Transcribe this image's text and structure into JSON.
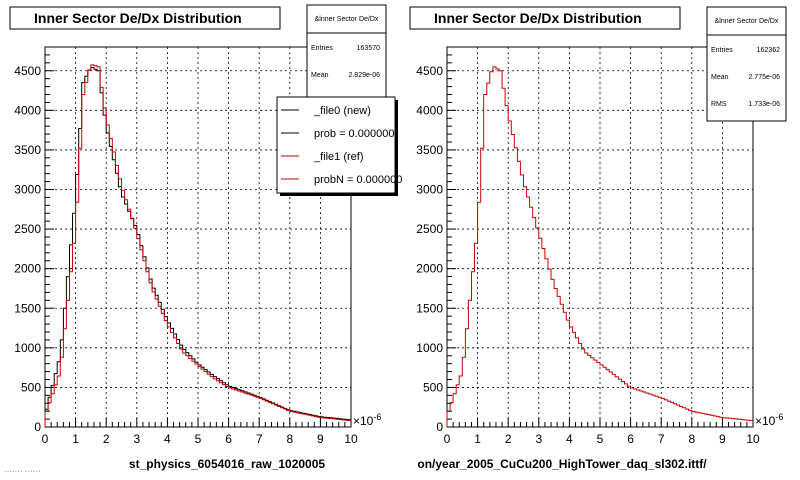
{
  "chart_data": [
    {
      "type": "line",
      "title": "Inner Sector De/Dx Distribution",
      "xlabel": "st_physics_6054016_raw_1020005",
      "x_exponent": "×10",
      "x_exponent_power": "-6",
      "xlim": [
        0,
        10
      ],
      "ylim": [
        0,
        4800
      ],
      "x_ticks": [
        "0",
        "1",
        "2",
        "3",
        "4",
        "5",
        "6",
        "7",
        "8",
        "9",
        "10"
      ],
      "y_ticks": [
        "0",
        "500",
        "1000",
        "1500",
        "2000",
        "2500",
        "3000",
        "3500",
        "4000",
        "4500"
      ],
      "grid": true,
      "stats": {
        "title": "&lnner Sector De/Dx",
        "rows": [
          {
            "label": "Entries",
            "value": "163570"
          },
          {
            "label": "Mean",
            "value": "2.829e-06"
          }
        ]
      },
      "legend": {
        "placement": "top-right",
        "entries": [
          {
            "label": "_file0 (new)",
            "color": "#000000"
          },
          {
            "label": "prob = 0.000000",
            "color": "#000000"
          },
          {
            "label": "_file1 (ref)",
            "color": "#cc0000"
          },
          {
            "label": "probN = 0.000000",
            "color": "#cc0000"
          }
        ]
      },
      "series": [
        {
          "color": "#000000",
          "x": [
            0.0,
            0.5,
            1.0,
            1.25,
            1.5,
            1.75,
            2.0,
            2.5,
            3.0,
            3.5,
            4.0,
            4.5,
            5.0,
            5.5,
            6.0,
            7.0,
            8.0,
            9.0,
            10.0
          ],
          "values": [
            150,
            900,
            2900,
            4350,
            4550,
            4500,
            3800,
            2950,
            2500,
            1800,
            1350,
            1000,
            800,
            650,
            520,
            380,
            210,
            130,
            90
          ]
        },
        {
          "color": "#cc0000",
          "x": [
            0.0,
            0.5,
            1.0,
            1.25,
            1.5,
            1.75,
            2.0,
            2.5,
            3.0,
            3.5,
            4.0,
            4.5,
            5.0,
            5.5,
            6.0,
            7.0,
            8.0,
            9.0,
            10.0
          ],
          "values": [
            140,
            700,
            2500,
            4200,
            4580,
            4550,
            3900,
            3050,
            2450,
            1750,
            1300,
            950,
            780,
            620,
            500,
            370,
            200,
            120,
            80
          ]
        }
      ]
    },
    {
      "type": "line",
      "title": "Inner Sector De/Dx Distribution",
      "xlabel": "on/year_2005_CuCu200_HighTower_daq_sl302.ittf/",
      "x_exponent": "×10",
      "x_exponent_power": "-6",
      "xlim": [
        0,
        10
      ],
      "ylim": [
        0,
        4800
      ],
      "x_ticks": [
        "0",
        "1",
        "2",
        "3",
        "4",
        "5",
        "6",
        "7",
        "8",
        "9",
        "10"
      ],
      "y_ticks": [
        "0",
        "500",
        "1000",
        "1500",
        "2000",
        "2500",
        "3000",
        "3500",
        "4000",
        "4500"
      ],
      "grid": true,
      "stats": {
        "title": "&lnner Sector De/Dx",
        "rows": [
          {
            "label": "Entries",
            "value": "162362"
          },
          {
            "label": "Mean",
            "value": "2.775e-06"
          },
          {
            "label": "RMS",
            "value": "1.733e-06"
          }
        ]
      },
      "series": [
        {
          "color": "#cc0000",
          "x": [
            0.0,
            0.5,
            1.0,
            1.25,
            1.5,
            1.75,
            2.0,
            2.5,
            3.0,
            3.5,
            4.0,
            4.5,
            5.0,
            5.5,
            6.0,
            7.0,
            8.0,
            9.0,
            10.0
          ],
          "values": [
            140,
            700,
            2500,
            4200,
            4560,
            4500,
            3950,
            3100,
            2450,
            1800,
            1300,
            950,
            800,
            650,
            500,
            370,
            200,
            120,
            80
          ]
        }
      ]
    }
  ],
  "footer_text": "······· ······"
}
